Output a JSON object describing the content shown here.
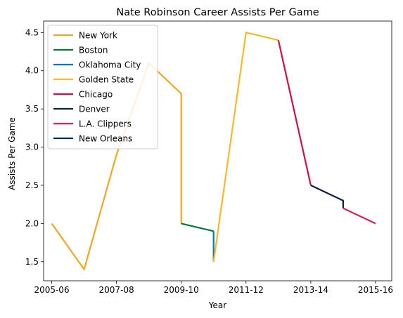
{
  "chart_data": {
    "type": "line",
    "title": "Nate Robinson Career Assists Per Game",
    "xlabel": "Year",
    "ylabel": "Assists Per Game",
    "x_ticks": [
      "2005-06",
      "2007-08",
      "2009-10",
      "2011-12",
      "2013-14",
      "2015-16"
    ],
    "y_ticks": [
      "1.5",
      "2.0",
      "2.5",
      "3.0",
      "3.5",
      "4.0",
      "4.5"
    ],
    "ylim": [
      1.25,
      4.65
    ],
    "xlim": [
      2004.75,
      2015.5
    ],
    "grid": false,
    "legend_position": "upper-left",
    "series": [
      {
        "name": "New York",
        "color": "#F5A623",
        "x": [
          2005,
          2006,
          2007,
          2008,
          2009,
          2009
        ],
        "y": [
          2.0,
          1.4,
          2.9,
          4.1,
          3.7,
          2.0
        ]
      },
      {
        "name": "Boston",
        "color": "#007A33",
        "x": [
          2009,
          2010
        ],
        "y": [
          2.0,
          1.9
        ]
      },
      {
        "name": "Oklahoma City",
        "color": "#007AC1",
        "x": [
          2010,
          2010
        ],
        "y": [
          1.9,
          1.5
        ]
      },
      {
        "name": "Golden State",
        "color": "#FDB927",
        "x": [
          2010,
          2011,
          2012
        ],
        "y": [
          1.5,
          4.5,
          4.4
        ]
      },
      {
        "name": "Chicago",
        "color": "#CE1141",
        "x": [
          2012,
          2013
        ],
        "y": [
          4.4,
          2.5
        ]
      },
      {
        "name": "Denver",
        "color": "#0E2240",
        "x": [
          2013,
          2014,
          2014
        ],
        "y": [
          2.5,
          2.3,
          2.2
        ]
      },
      {
        "name": "L.A. Clippers",
        "color": "#E0234E",
        "x": [
          2014,
          2015
        ],
        "y": [
          2.2,
          2.0
        ]
      },
      {
        "name": "New Orleans",
        "color": "#002B5C",
        "x": [],
        "y": []
      }
    ]
  }
}
